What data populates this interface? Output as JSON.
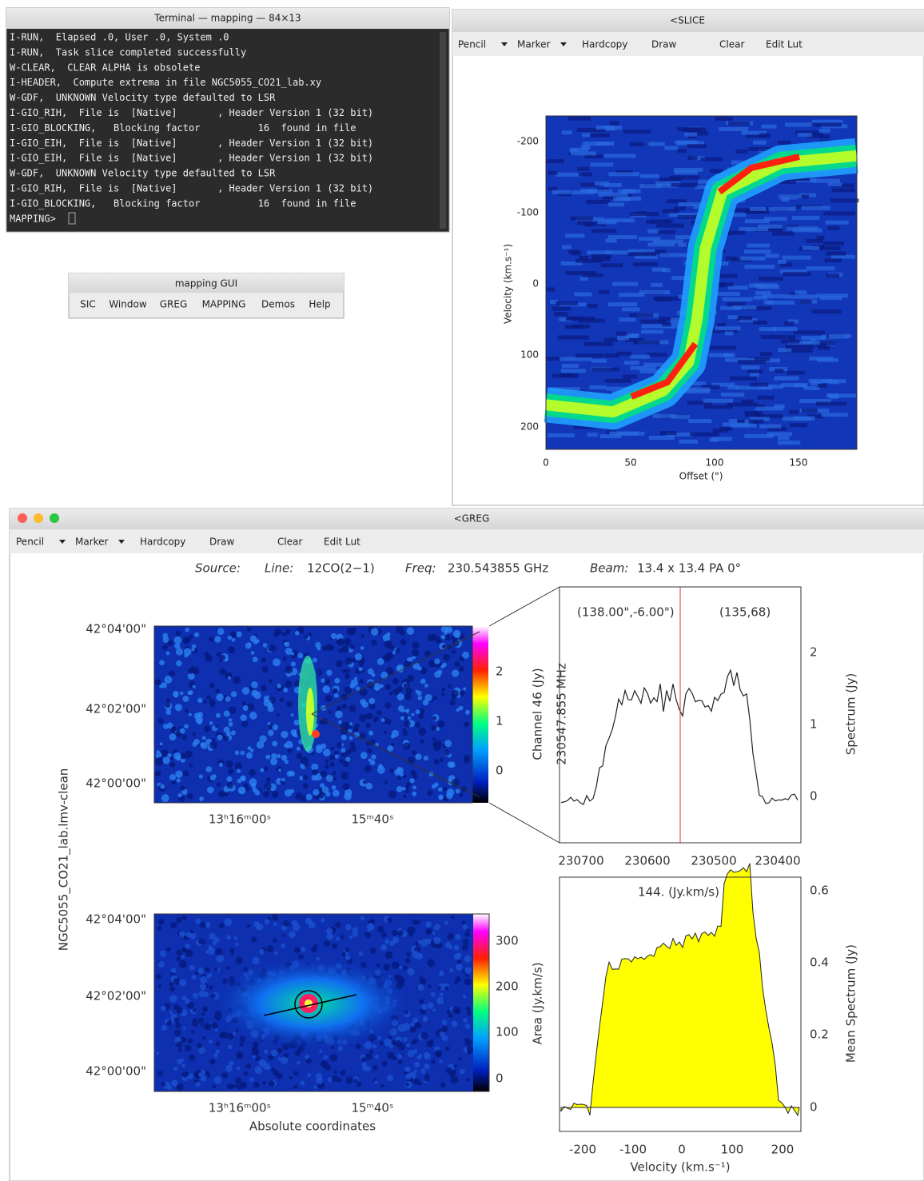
{
  "terminal": {
    "title": "Terminal — mapping — 84×13",
    "lines": [
      "I-RUN,  Elapsed .0, User .0, System .0",
      "I-RUN,  Task slice completed successfully",
      "W-CLEAR,  CLEAR ALPHA is obsolete",
      "I-HEADER,  Compute extrema in file NGC5055_CO21_lab.xy",
      "W-GDF,  UNKNOWN Velocity type defaulted to LSR",
      "I-GIO_RIH,  File is  [Native]       , Header Version 1 (32 bit)",
      "I-GIO_BLOCKING,   Blocking factor          16  found in file",
      "I-GIO_EIH,  File is  [Native]       , Header Version 1 (32 bit)",
      "I-GIO_EIH,  File is  [Native]       , Header Version 1 (32 bit)",
      "W-GDF,  UNKNOWN Velocity type defaulted to LSR",
      "I-GIO_RIH,  File is  [Native]       , Header Version 1 (32 bit)",
      "I-GIO_BLOCKING,   Blocking factor          16  found in file",
      "MAPPING>"
    ]
  },
  "gui": {
    "title": "mapping GUI",
    "menu": [
      "SIC",
      "Window",
      "GREG",
      "MAPPING",
      "Demos",
      "Help"
    ]
  },
  "slice": {
    "title": "<SLICE",
    "toolbar": [
      "Pencil",
      "Marker",
      "Hardcopy",
      "Draw",
      "Clear",
      "Edit Lut"
    ],
    "ylabel": "Velocity (km.s⁻¹)",
    "xlabel": "Offset (\")",
    "yticks": [
      "-200",
      "-100",
      "0",
      "100",
      "200"
    ],
    "xticks": [
      "0",
      "50",
      "100",
      "150"
    ]
  },
  "greg": {
    "title": "<GREG",
    "toolbar": [
      "Pencil",
      "Marker",
      "Hardcopy",
      "Draw",
      "Clear",
      "Edit Lut"
    ],
    "header": [
      "Source:",
      "Line:",
      "12CO(2−1)",
      "Freq:",
      "230.543855 GHz",
      "Beam:",
      "13.4 x 13.4 PA 0°"
    ],
    "map_name": "NGC5055_CO21_lab.lmv-clean",
    "dec_ticks": [
      "42°04'00\"",
      "42°02'00\"",
      "42°00'00\""
    ],
    "ra_ticks": [
      "13ʰ16ᵐ00ˢ",
      "15ᵐ40ˢ"
    ],
    "xlabel": "Absolute coordinates",
    "channel_cbar": [
      "2",
      "1",
      "0"
    ],
    "area_cbar": [
      "300",
      "200",
      "100",
      "0"
    ],
    "spectrum": {
      "position": "(138.00\",-6.00\")",
      "pixel": "(135,68)",
      "left_label": "Channel 46 (Jy)",
      "freq_label": "230547.855 MHz",
      "right_label": "Spectrum (Jy)",
      "yticks": [
        "2",
        "1",
        "0"
      ],
      "xticks": [
        "230700",
        "230600",
        "230500",
        "230400"
      ]
    },
    "mean": {
      "annotation": "144. (Jy.km/s)",
      "left_label": "Area (Jy.km/s)",
      "right_label": "Mean Spectrum (Jy)",
      "yticks": [
        "0.6",
        "0.4",
        "0.2",
        "0"
      ],
      "xticks": [
        "-200",
        "-100",
        "0",
        "100",
        "200"
      ],
      "xlabel": "Velocity (km.s⁻¹)"
    }
  }
}
